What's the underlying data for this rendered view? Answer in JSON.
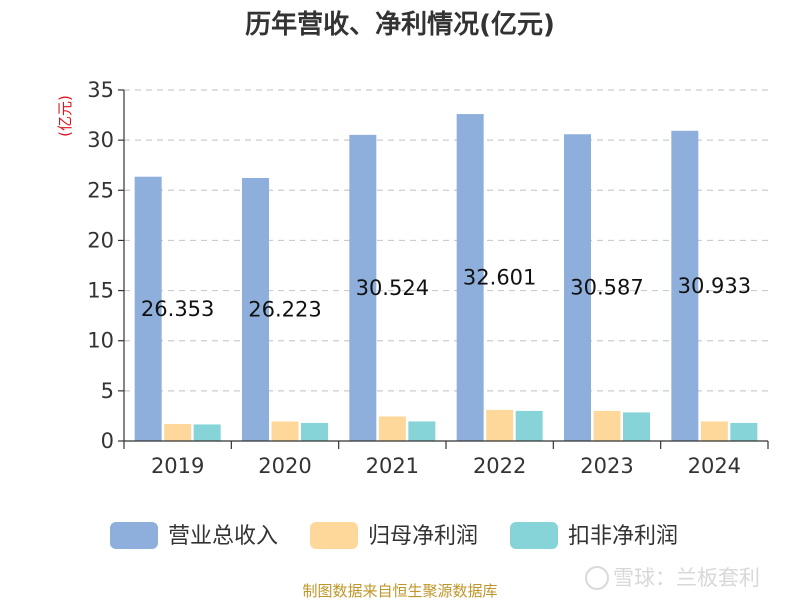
{
  "chart_data": {
    "type": "bar",
    "title": "历年营收、净利情况(亿元)",
    "ylabel": "(亿元)",
    "categories": [
      "2019",
      "2020",
      "2021",
      "2022",
      "2023",
      "2024"
    ],
    "ylim": [
      0,
      35
    ],
    "yticks": [
      0,
      5,
      10,
      15,
      20,
      25,
      30,
      35
    ],
    "grid": true,
    "legend_position": "bottom",
    "series": [
      {
        "name": "营业总收入",
        "color": "#8eafdb",
        "values": [
          26.353,
          26.223,
          30.524,
          32.601,
          30.587,
          30.933
        ]
      },
      {
        "name": "归母净利润",
        "color": "#fed89a",
        "values": [
          1.7,
          1.95,
          2.45,
          3.1,
          3.0,
          1.95
        ]
      },
      {
        "name": "扣非净利润",
        "color": "#86d4d8",
        "values": [
          1.65,
          1.8,
          1.95,
          3.0,
          2.85,
          1.8
        ]
      }
    ],
    "data_labels": [
      "26.353",
      "26.223",
      "30.524",
      "32.601",
      "30.587",
      "30.933"
    ]
  },
  "footer": {
    "source": "制图数据来自恒生聚源数据库",
    "watermark": "雪球：兰板套利"
  }
}
